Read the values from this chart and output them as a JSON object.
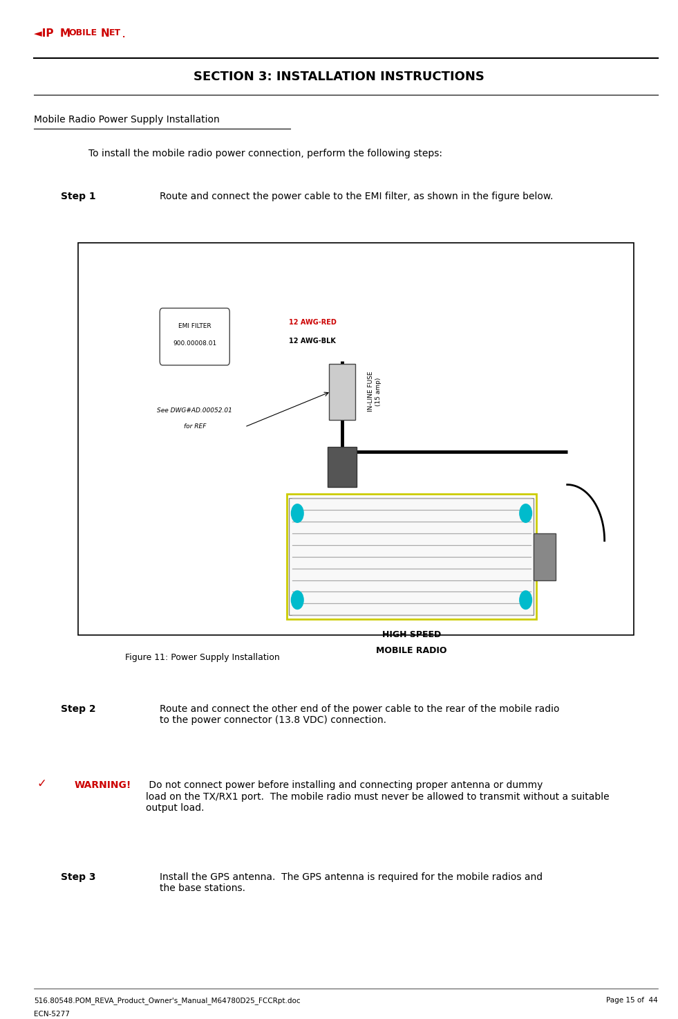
{
  "page_width": 9.81,
  "page_height": 14.73,
  "bg_color": "#ffffff",
  "section_title": "SECTION 3: INSTALLATION INSTRUCTIONS",
  "underline_heading": "Mobile Radio Power Supply Installation",
  "intro_text": "To install the mobile radio power connection, perform the following steps:",
  "step1_label": "Step 1",
  "step1_text": "Route and connect the power cable to the EMI filter, as shown in the figure below.",
  "figure_caption": "Figure 11: Power Supply Installation",
  "step2_label": "Step 2",
  "step2_text": "Route and connect the other end of the power cable to the rear of the mobile radio\nto the power connector (13.8 VDC) connection.",
  "warning_label": "WARNING!",
  "warning_text": " Do not connect power before installing and connecting proper antenna or dummy\nload on the TX/RX1 port.  The mobile radio must never be allowed to transmit without a suitable\noutput load.",
  "step3_label": "Step 3",
  "step3_text": "Install the GPS antenna.  The GPS antenna is required for the mobile radios and\nthe base stations.",
  "footer_left": "516.80548.POM_REVA_Product_Owner's_Manual_M64780D25_FCCRpt.doc",
  "footer_right": "Page 15 of  44",
  "footer_left2": "ECN-5277",
  "text_color": "#000000",
  "warning_color": "#cc0000",
  "red_color": "#cc0000",
  "section_title_color": "#000000"
}
